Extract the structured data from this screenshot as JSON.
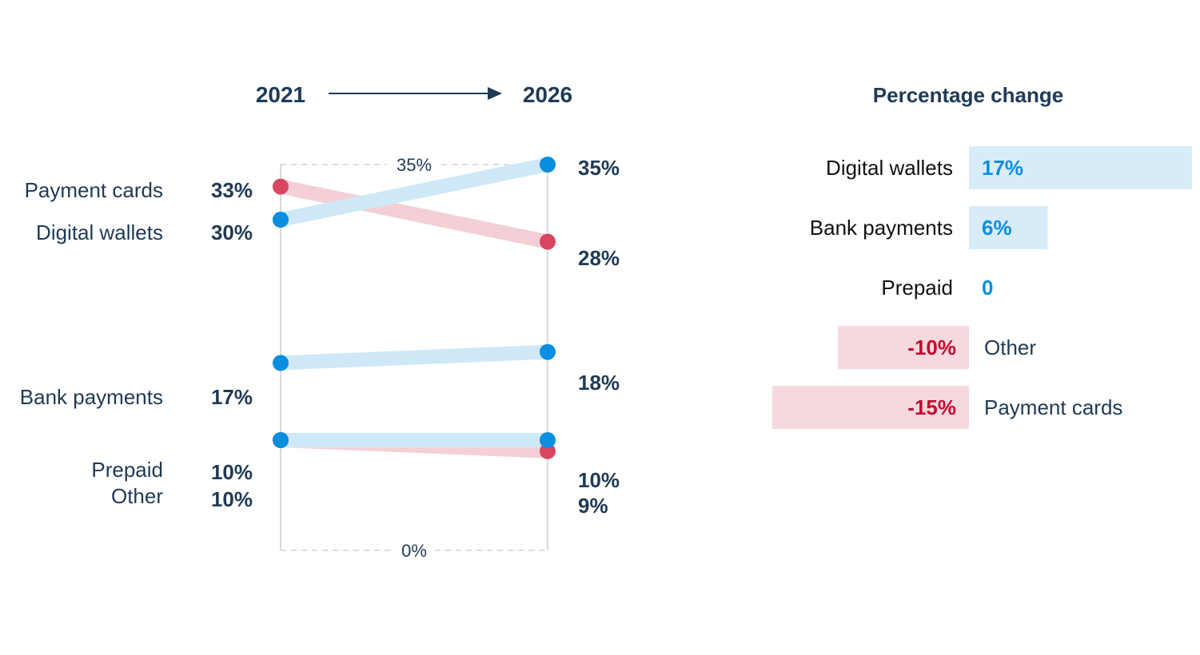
{
  "chart_data": [
    {
      "type": "slope",
      "header_left": "2021",
      "header_right": "2026",
      "ylim": [
        0,
        35
      ],
      "tick_top": "35%",
      "tick_bottom": "0%",
      "series": [
        {
          "name": "Payment cards",
          "start": 33,
          "end": 28,
          "start_label": "33%",
          "end_label": "28%",
          "color": "#d9465f"
        },
        {
          "name": "Digital wallets",
          "start": 30,
          "end": 35,
          "start_label": "30%",
          "end_label": "35%",
          "color": "#0a8ee0"
        },
        {
          "name": "Bank payments",
          "start": 17,
          "end": 18,
          "start_label": "17%",
          "end_label": "18%",
          "color": "#0a8ee0"
        },
        {
          "name": "Prepaid",
          "start": 10,
          "end": 10,
          "start_label": "10%",
          "end_label": "10%",
          "color": "#0a8ee0"
        },
        {
          "name": "Other",
          "start": 10,
          "end": 9,
          "start_label": "10%",
          "end_label": "9%",
          "color": "#d9465f"
        }
      ]
    },
    {
      "type": "bar",
      "title": "Percentage change",
      "categories": [
        "Digital wallets",
        "Bank payments",
        "Prepaid",
        "Other",
        "Payment cards"
      ],
      "values": [
        17,
        6,
        0,
        -10,
        -15
      ],
      "value_labels": [
        "17%",
        "6%",
        "0",
        "-10%",
        "-15%"
      ]
    }
  ],
  "colors": {
    "text": "#1f3a56",
    "positive": "#0a8ee0",
    "negative": "#c4092f",
    "positive_band": "#cfe8f8",
    "negative_band": "#f4cfd6",
    "positive_bar": "#d8ecf8",
    "negative_bar": "#f6d9de"
  }
}
